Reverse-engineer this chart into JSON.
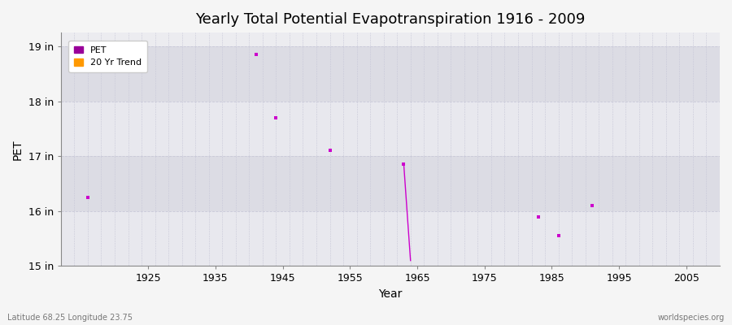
{
  "title": "Yearly Total Potential Evapotranspiration 1916 - 2009",
  "xlabel": "Year",
  "ylabel": "PET",
  "xlim": [
    1912,
    2010
  ],
  "ylim": [
    15,
    19.25
  ],
  "xticks": [
    1925,
    1935,
    1945,
    1955,
    1965,
    1975,
    1985,
    1995,
    2005
  ],
  "ytick_values": [
    15,
    16,
    17,
    18,
    19
  ],
  "ytick_labels": [
    "15 in",
    "16 in",
    "17 in",
    "18 in",
    "19 in"
  ],
  "pet_points": [
    [
      1916,
      16.25
    ],
    [
      1941,
      18.85
    ],
    [
      1944,
      17.7
    ],
    [
      1952,
      17.1
    ],
    [
      1963,
      16.85
    ],
    [
      1983,
      15.9
    ],
    [
      1986,
      15.55
    ],
    [
      1991,
      16.1
    ]
  ],
  "trend_line": [
    [
      1963,
      16.85
    ],
    [
      1964,
      15.1
    ]
  ],
  "pet_color": "#cc00cc",
  "trend_color": "#cc00cc",
  "legend_pet_color": "#990099",
  "legend_trend_color": "#ff9900",
  "bg_color": "#f5f5f5",
  "plot_bg_color": "#ececf0",
  "band_color_light": "#e8e8ee",
  "band_color_dark": "#dcdce4",
  "grid_color": "#c8c8d8",
  "subtitle_left": "Latitude 68.25 Longitude 23.75",
  "subtitle_right": "worldspecies.org",
  "marker_size": 3,
  "title_fontsize": 13
}
